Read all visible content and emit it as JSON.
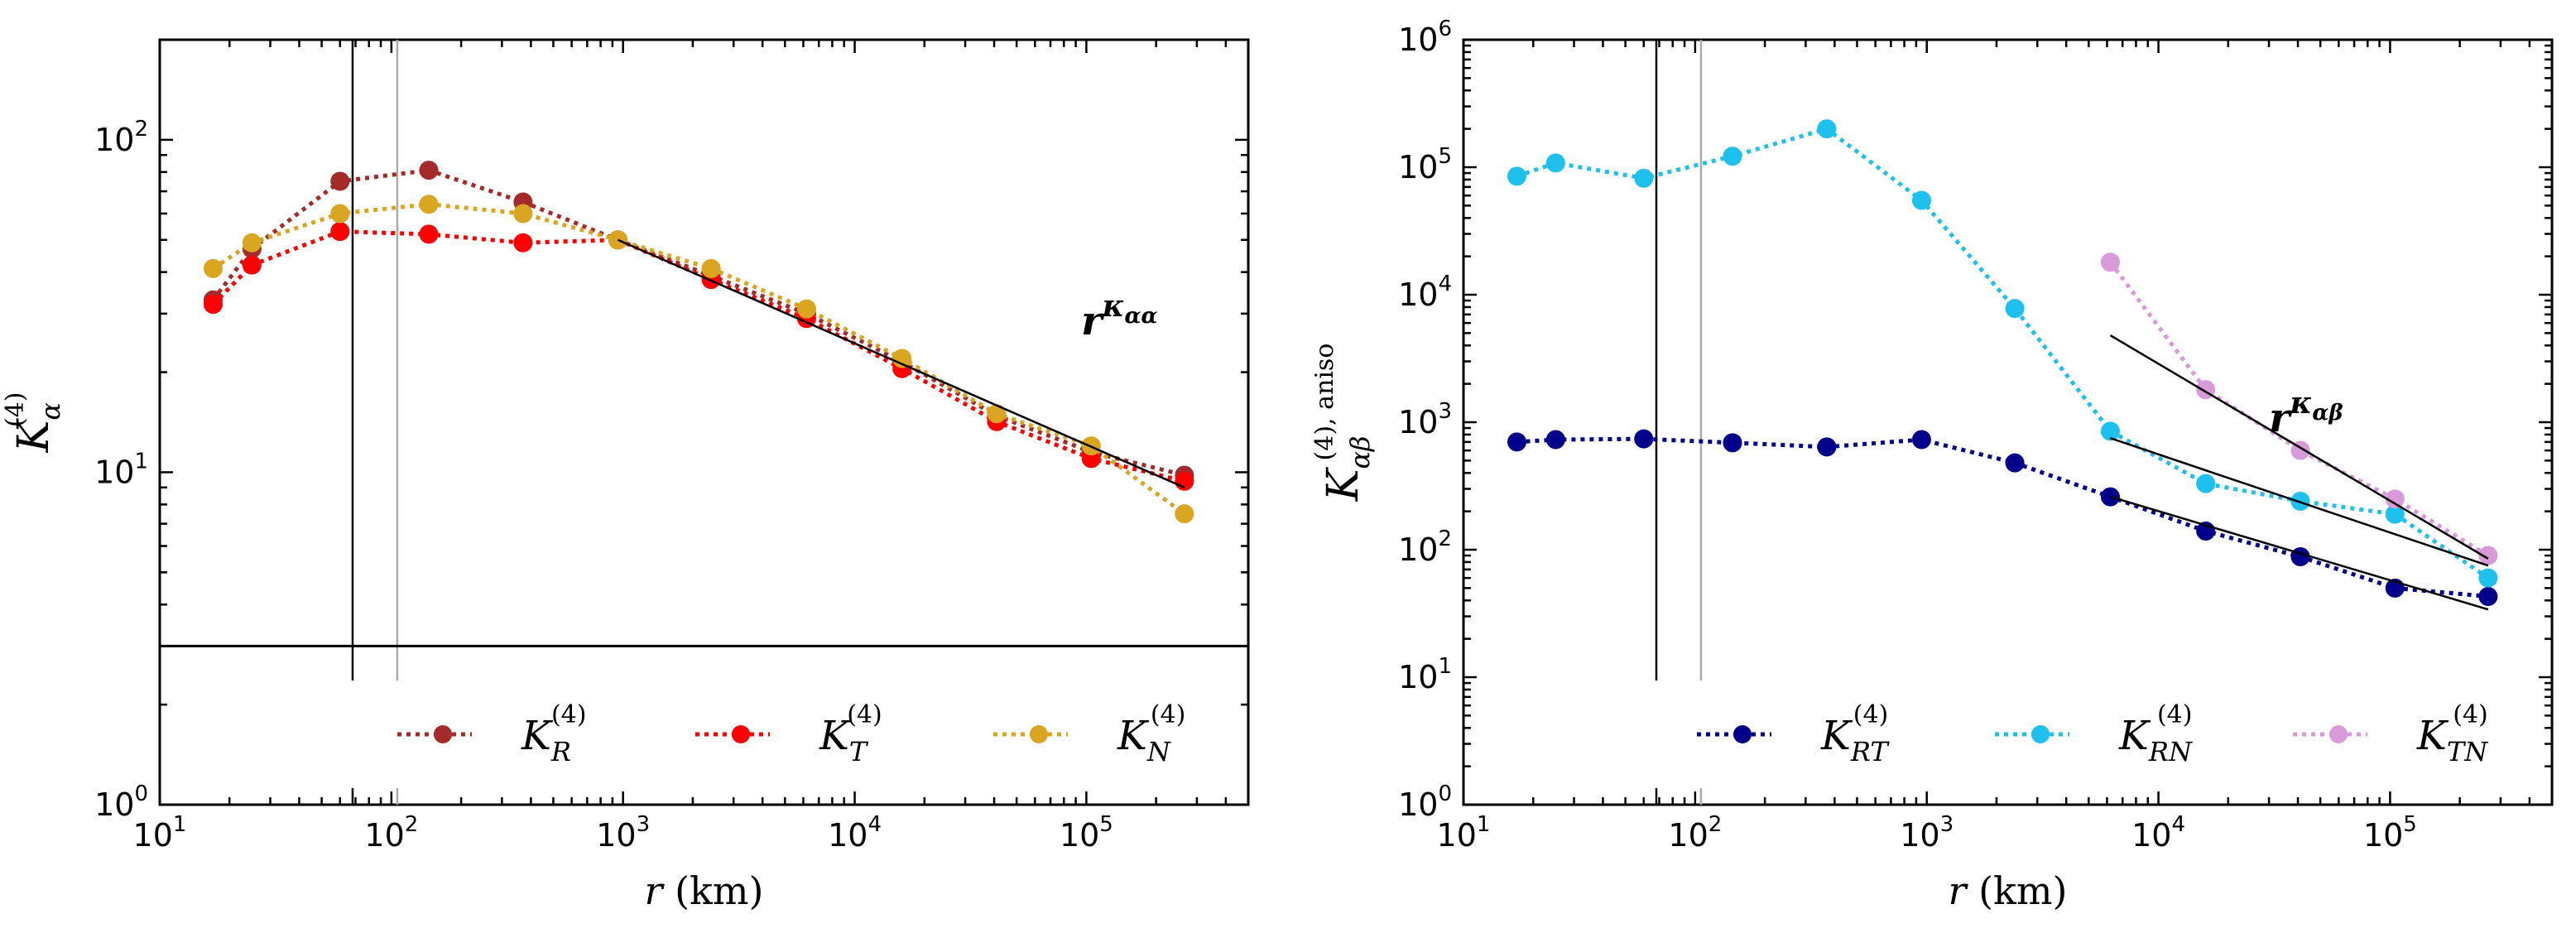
{
  "chart_data": [
    {
      "type": "line",
      "panel": "left",
      "x_scale": "log",
      "y_scale": "log",
      "xlim": [
        10,
        500000
      ],
      "ylim": [
        1,
        200
      ],
      "x_ticks": [
        {
          "base": "10",
          "exp": "1",
          "value": 10
        },
        {
          "base": "10",
          "exp": "2",
          "value": 100
        },
        {
          "base": "10",
          "exp": "3",
          "value": 1000
        },
        {
          "base": "10",
          "exp": "4",
          "value": 10000
        },
        {
          "base": "10",
          "exp": "5",
          "value": 100000
        }
      ],
      "y_ticks": [
        {
          "base": "10",
          "exp": "0",
          "value": 1
        },
        {
          "base": "10",
          "exp": "1",
          "value": 10
        },
        {
          "base": "10",
          "exp": "2",
          "value": 100
        }
      ],
      "xlabel": {
        "var": "r",
        "unit": "(km)"
      },
      "ylabel": {
        "main": "K",
        "sub": "α",
        "sup": "(4)",
        "extra": ""
      },
      "x": [
        17,
        25,
        60,
        145,
        370,
        950,
        2400,
        6200,
        16000,
        41000,
        105000,
        265000
      ],
      "series": [
        {
          "name": "K_R^(4)",
          "legend_main": "K",
          "legend_sub": "R",
          "legend_sup": "(4)",
          "color": "#a52a2a",
          "values": [
            33,
            47,
            75,
            81,
            65,
            50,
            39,
            30,
            21.5,
            14.8,
            11.5,
            9.8
          ]
        },
        {
          "name": "K_T^(4)",
          "legend_main": "K",
          "legend_sub": "T",
          "legend_sup": "(4)",
          "color": "#ff0000",
          "values": [
            32,
            42,
            53,
            52,
            49,
            50,
            38,
            29,
            20.5,
            14.2,
            11,
            9.4
          ]
        },
        {
          "name": "K_N^(4)",
          "legend_main": "K",
          "legend_sub": "N",
          "legend_sup": "(4)",
          "color": "#daa520",
          "values": [
            41,
            49,
            60,
            64,
            60,
            50,
            41,
            31,
            22,
            15,
            12,
            7.5
          ]
        }
      ],
      "fit_lines": [
        {
          "x": [
            950,
            265000
          ],
          "y": [
            50,
            9
          ]
        }
      ],
      "vlines": [
        {
          "x": 68,
          "color": "#000000"
        },
        {
          "x": 106,
          "color": "#aaaaaa"
        }
      ],
      "hlines": [
        {
          "y": 3,
          "color": "#000000"
        }
      ],
      "annotation": {
        "base": "r",
        "exp": "κ",
        "exp_sub": "αα",
        "x": 95000,
        "y": 26
      }
    },
    {
      "type": "line",
      "panel": "right",
      "x_scale": "log",
      "y_scale": "log",
      "xlim": [
        10,
        500000
      ],
      "ylim": [
        1,
        1000000
      ],
      "x_ticks": [
        {
          "base": "10",
          "exp": "1",
          "value": 10
        },
        {
          "base": "10",
          "exp": "2",
          "value": 100
        },
        {
          "base": "10",
          "exp": "3",
          "value": 1000
        },
        {
          "base": "10",
          "exp": "4",
          "value": 10000
        },
        {
          "base": "10",
          "exp": "5",
          "value": 100000
        }
      ],
      "y_ticks": [
        {
          "base": "10",
          "exp": "0",
          "value": 1
        },
        {
          "base": "10",
          "exp": "1",
          "value": 10
        },
        {
          "base": "10",
          "exp": "2",
          "value": 100
        },
        {
          "base": "10",
          "exp": "3",
          "value": 1000
        },
        {
          "base": "10",
          "exp": "4",
          "value": 10000
        },
        {
          "base": "10",
          "exp": "5",
          "value": 100000
        },
        {
          "base": "10",
          "exp": "6",
          "value": 1000000
        }
      ],
      "xlabel": {
        "var": "r",
        "unit": "(km)"
      },
      "ylabel": {
        "main": "K",
        "sub": "αβ",
        "sup": "(4), aniso",
        "extra": ""
      },
      "series": [
        {
          "name": "K_RT^(4)",
          "legend_main": "K",
          "legend_sub": "RT",
          "legend_sup": "(4)",
          "color": "#00008b",
          "x": [
            17,
            25,
            60,
            145,
            370,
            950,
            2400,
            6200,
            16000,
            41000,
            105000,
            265000
          ],
          "values": [
            700,
            730,
            740,
            690,
            640,
            730,
            480,
            260,
            140,
            88,
            50,
            43
          ]
        },
        {
          "name": "K_RN^(4)",
          "legend_main": "K",
          "legend_sub": "RN",
          "legend_sup": "(4)",
          "color": "#1ec0ee",
          "x": [
            17,
            25,
            60,
            145,
            370,
            950,
            2400,
            6200,
            16000,
            41000,
            105000,
            265000
          ],
          "values": [
            85000,
            108000,
            82000,
            122000,
            200000,
            55000,
            7800,
            850,
            330,
            240,
            190,
            60
          ]
        },
        {
          "name": "K_TN^(4)",
          "legend_main": "K",
          "legend_sub": "TN",
          "legend_sup": "(4)",
          "color": "#d89ad8",
          "x": [
            6200,
            16000,
            41000,
            105000,
            265000
          ],
          "values": [
            18000,
            1800,
            600,
            250,
            90
          ]
        }
      ],
      "fit_lines": [
        {
          "x": [
            6200,
            265000
          ],
          "y": [
            4800,
            85
          ]
        },
        {
          "x": [
            6200,
            265000
          ],
          "y": [
            750,
            75
          ]
        },
        {
          "x": [
            6200,
            265000
          ],
          "y": [
            260,
            34
          ]
        }
      ],
      "vlines": [
        {
          "x": 68,
          "color": "#000000"
        },
        {
          "x": 106,
          "color": "#aaaaaa"
        }
      ],
      "hlines": [],
      "annotation": {
        "base": "r",
        "exp": "κ",
        "exp_sub": "αβ",
        "x": 30000,
        "y": 850
      }
    }
  ]
}
